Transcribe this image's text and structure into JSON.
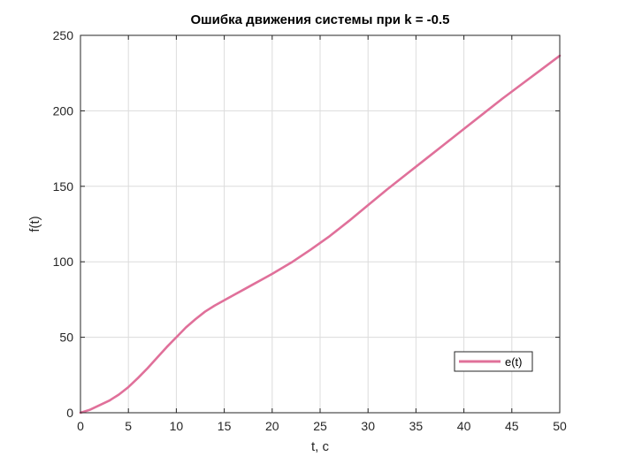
{
  "chart_data": {
    "type": "line",
    "title": "Ошибка движения системы при k = -0.5",
    "xlabel": "t, c",
    "ylabel": "f(t)",
    "xlim": [
      0,
      50
    ],
    "ylim": [
      0,
      250
    ],
    "xticks": [
      0,
      5,
      10,
      15,
      20,
      25,
      30,
      35,
      40,
      45,
      50
    ],
    "yticks": [
      0,
      50,
      100,
      150,
      200,
      250
    ],
    "grid": true,
    "legend_position": "bottom-right",
    "colors": {
      "series": "#e0709a",
      "grid": "#dcdcdc",
      "axis": "#262626"
    },
    "series": [
      {
        "name": "e(t)",
        "x": [
          0,
          1,
          2,
          3,
          4,
          5,
          6,
          7,
          8,
          9,
          10,
          11,
          12,
          13,
          14,
          15,
          16,
          17,
          18,
          19,
          20,
          22,
          24,
          26,
          28,
          30,
          32,
          34,
          36,
          38,
          40,
          42,
          44,
          46,
          48,
          50
        ],
        "y": [
          0,
          2,
          5,
          8,
          12,
          17,
          23,
          29.5,
          36.5,
          43.5,
          50,
          56.5,
          62,
          67,
          71,
          74.5,
          78,
          81.5,
          85,
          88.5,
          92,
          99.5,
          108,
          117,
          127,
          137.5,
          148,
          158,
          168,
          178,
          188,
          198,
          208,
          217.5,
          227,
          236.5
        ]
      }
    ]
  }
}
